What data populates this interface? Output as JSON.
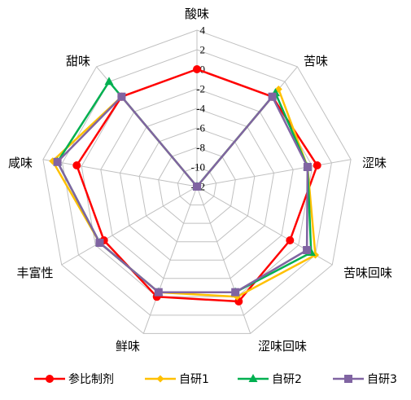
{
  "chart_data": {
    "type": "radar",
    "axes": [
      "酸味",
      "苦味",
      "涩味",
      "苦味回味",
      "涩味回味",
      "鲜味",
      "丰富性",
      "咸味",
      "甜味"
    ],
    "rlim": [
      -12,
      4
    ],
    "ticks": [
      4,
      2,
      0,
      -2,
      -4,
      -6,
      -8,
      -10,
      -12
    ],
    "tick_labels": [
      "4",
      "2",
      "0",
      "-2",
      "-4",
      "-6",
      "-8",
      "-10",
      "-12"
    ],
    "grid": true,
    "legend_position": "bottom",
    "series": [
      {
        "name": "参比制剂",
        "color": "#ff0000",
        "marker": "circle",
        "values": [
          0,
          0,
          0.5,
          -1,
          0.5,
          0,
          -1,
          0.5,
          0
        ]
      },
      {
        "name": "自研1",
        "color": "#ffc000",
        "marker": "diamond",
        "values": [
          -12,
          1,
          -0.5,
          2,
          0,
          -0.5,
          -0.5,
          3,
          0
        ]
      },
      {
        "name": "自研2",
        "color": "#00b050",
        "marker": "triangle",
        "values": [
          -12,
          0.5,
          -0.5,
          1.5,
          -0.5,
          -0.5,
          -0.5,
          2.5,
          2
        ]
      },
      {
        "name": "自研3",
        "color": "#8064a2",
        "marker": "square",
        "values": [
          -12,
          0,
          -0.5,
          1,
          -0.5,
          -0.5,
          -0.5,
          2.5,
          0
        ]
      }
    ]
  }
}
